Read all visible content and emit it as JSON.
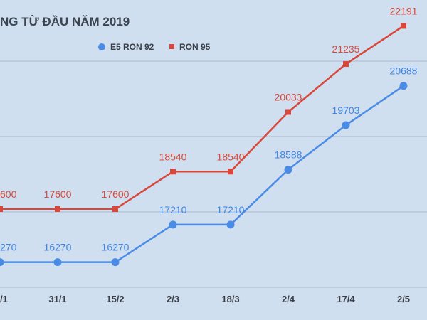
{
  "chart_data": {
    "type": "line",
    "title": "NG TỪ ĐẦU NĂM 2019",
    "categories": [
      "/1",
      "31/1",
      "15/2",
      "2/3",
      "18/3",
      "2/4",
      "17/4",
      "2/5"
    ],
    "series": [
      {
        "name": "E5 RON 92",
        "color": "#4a8be6",
        "marker": "circle",
        "values": [
          16270,
          16270,
          16270,
          17210,
          17210,
          18588,
          19703,
          20688
        ],
        "labels": [
          "270",
          "16270",
          "16270",
          "17210",
          "17210",
          "18588",
          "19703",
          "20688"
        ]
      },
      {
        "name": "RON 95",
        "color": "#d9473a",
        "marker": "square",
        "values": [
          17600,
          17600,
          17600,
          18540,
          18540,
          20033,
          21235,
          22191
        ],
        "labels": [
          "600",
          "17600",
          "17600",
          "18540",
          "18540",
          "20033",
          "21235",
          "22191"
        ]
      }
    ],
    "legend_position": "top-center",
    "grid": true,
    "xlabel": "",
    "ylabel": ""
  }
}
